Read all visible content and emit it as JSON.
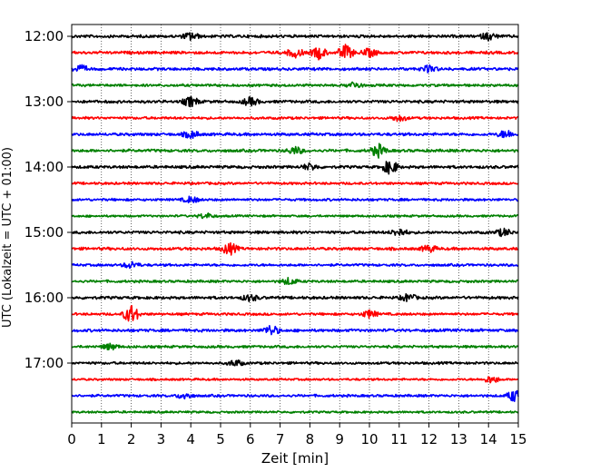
{
  "chart_data": {
    "type": "line",
    "title": "",
    "xlabel": "Zeit  [min]",
    "ylabel": "UTC (Lokalzeit = UTC + 01:00)",
    "xlim": [
      0,
      15
    ],
    "x_ticks": [
      "0",
      "1",
      "2",
      "3",
      "4",
      "5",
      "6",
      "7",
      "8",
      "9",
      "10",
      "11",
      "12",
      "13",
      "14",
      "15"
    ],
    "y_tick_labels": [
      "12:00",
      "13:00",
      "14:00",
      "15:00",
      "16:00",
      "17:00"
    ],
    "grid": "vertical dotted lines at each minute",
    "legend": "none",
    "color_cycle": [
      "#000000",
      "#ff0000",
      "#0000ff",
      "#008000"
    ],
    "series": [
      {
        "start": "12:00",
        "color": "#000000",
        "amplitude": 0.8,
        "events": [
          {
            "x": 4.0,
            "amp": 1.6
          },
          {
            "x": 14.0,
            "amp": 1.5
          }
        ]
      },
      {
        "start": "12:15",
        "color": "#ff0000",
        "amplitude": 0.8,
        "events": [
          {
            "x": 7.5,
            "amp": 2.0
          },
          {
            "x": 8.3,
            "amp": 2.8
          },
          {
            "x": 9.2,
            "amp": 3.5
          },
          {
            "x": 10.0,
            "amp": 1.8
          }
        ]
      },
      {
        "start": "12:30",
        "color": "#0000ff",
        "amplitude": 0.8,
        "events": [
          {
            "x": 0.3,
            "amp": 1.5
          },
          {
            "x": 12.0,
            "amp": 1.4
          }
        ]
      },
      {
        "start": "12:45",
        "color": "#008000",
        "amplitude": 0.7,
        "events": [
          {
            "x": 9.5,
            "amp": 1.4
          }
        ]
      },
      {
        "start": "13:00",
        "color": "#000000",
        "amplitude": 0.8,
        "events": [
          {
            "x": 4.0,
            "amp": 2.2
          },
          {
            "x": 6.0,
            "amp": 1.8
          }
        ]
      },
      {
        "start": "13:15",
        "color": "#ff0000",
        "amplitude": 0.7,
        "events": [
          {
            "x": 11.0,
            "amp": 1.3
          }
        ]
      },
      {
        "start": "13:30",
        "color": "#0000ff",
        "amplitude": 0.8,
        "events": [
          {
            "x": 4.0,
            "amp": 1.5
          },
          {
            "x": 14.6,
            "amp": 1.8
          }
        ]
      },
      {
        "start": "13:45",
        "color": "#008000",
        "amplitude": 0.8,
        "events": [
          {
            "x": 7.5,
            "amp": 1.6
          },
          {
            "x": 10.3,
            "amp": 3.0
          }
        ]
      },
      {
        "start": "14:00",
        "color": "#000000",
        "amplitude": 0.8,
        "events": [
          {
            "x": 10.7,
            "amp": 3.2
          },
          {
            "x": 8.0,
            "amp": 1.4
          }
        ]
      },
      {
        "start": "14:15",
        "color": "#ff0000",
        "amplitude": 0.7,
        "events": []
      },
      {
        "start": "14:30",
        "color": "#0000ff",
        "amplitude": 0.7,
        "events": [
          {
            "x": 4.0,
            "amp": 1.3
          }
        ]
      },
      {
        "start": "14:45",
        "color": "#008000",
        "amplitude": 0.6,
        "events": [
          {
            "x": 4.5,
            "amp": 1.2
          }
        ]
      },
      {
        "start": "15:00",
        "color": "#000000",
        "amplitude": 0.8,
        "events": [
          {
            "x": 11.0,
            "amp": 1.6
          },
          {
            "x": 14.5,
            "amp": 1.6
          }
        ]
      },
      {
        "start": "15:15",
        "color": "#ff0000",
        "amplitude": 0.8,
        "events": [
          {
            "x": 5.3,
            "amp": 2.8
          },
          {
            "x": 12.0,
            "amp": 1.5
          }
        ]
      },
      {
        "start": "15:30",
        "color": "#0000ff",
        "amplitude": 0.7,
        "events": [
          {
            "x": 2.0,
            "amp": 1.4
          }
        ]
      },
      {
        "start": "15:45",
        "color": "#008000",
        "amplitude": 0.7,
        "events": [
          {
            "x": 7.3,
            "amp": 1.5
          }
        ]
      },
      {
        "start": "16:00",
        "color": "#000000",
        "amplitude": 0.8,
        "events": [
          {
            "x": 6.0,
            "amp": 1.4
          },
          {
            "x": 11.3,
            "amp": 1.6
          }
        ]
      },
      {
        "start": "16:15",
        "color": "#ff0000",
        "amplitude": 0.7,
        "events": [
          {
            "x": 2.0,
            "amp": 4.5
          },
          {
            "x": 10.0,
            "amp": 1.6
          }
        ]
      },
      {
        "start": "16:30",
        "color": "#0000ff",
        "amplitude": 0.8,
        "events": [
          {
            "x": 6.7,
            "amp": 2.2
          }
        ]
      },
      {
        "start": "16:45",
        "color": "#008000",
        "amplitude": 0.7,
        "events": [
          {
            "x": 1.3,
            "amp": 1.3
          }
        ]
      },
      {
        "start": "17:00",
        "color": "#000000",
        "amplitude": 0.7,
        "events": [
          {
            "x": 5.5,
            "amp": 1.3
          }
        ]
      },
      {
        "start": "17:15",
        "color": "#ff0000",
        "amplitude": 0.6,
        "events": [
          {
            "x": 14.1,
            "amp": 1.6
          }
        ]
      },
      {
        "start": "17:30",
        "color": "#0000ff",
        "amplitude": 0.7,
        "events": [
          {
            "x": 14.9,
            "amp": 3.0
          },
          {
            "x": 3.8,
            "amp": 1.4
          }
        ]
      },
      {
        "start": "17:45",
        "color": "#008000",
        "amplitude": 0.6,
        "events": []
      }
    ]
  }
}
